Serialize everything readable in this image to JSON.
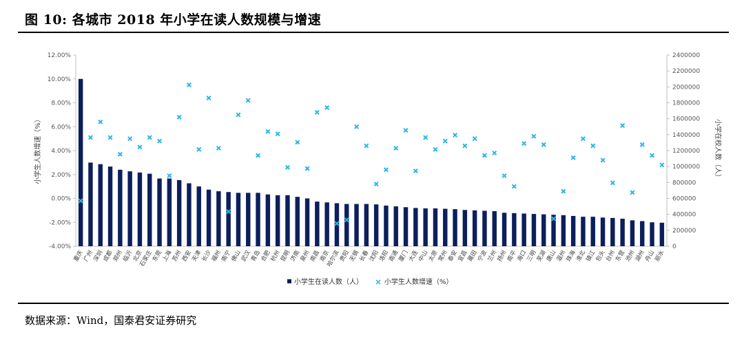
{
  "title": "图 10:  各城市 2018 年小学在读人数规模与增速",
  "source": "数据来源：Wind，国泰君安证券研究",
  "colors": {
    "bar": "#0c1f5c",
    "marker": "#29b5e8",
    "axis": "#bfbfbf"
  },
  "chart_data": {
    "type": "bar+scatter",
    "categories": [
      "重庆",
      "广州",
      "深圳",
      "成都",
      "郑州",
      "临沂",
      "北京",
      "石家庄",
      "东莞",
      "上海",
      "苏州",
      "西安",
      "天津",
      "长沙",
      "福州",
      "南宁",
      "佛山",
      "武汉",
      "青岛",
      "合肥",
      "杭州",
      "昆明",
      "济南",
      "泉州",
      "南昌",
      "南京",
      "哈尔滨",
      "贵阳",
      "无锡",
      "长春",
      "沈阳",
      "洛阳",
      "南通",
      "厦门",
      "大连",
      "中山",
      "太原",
      "常州",
      "泰安",
      "宜昌",
      "莆田",
      "宁波",
      "兰州",
      "扬州",
      "南平",
      "海口",
      "三明",
      "芜湖",
      "唐山",
      "温州",
      "珠海",
      "淮北",
      "镇江",
      "包头",
      "台州",
      "东营",
      "池州",
      "湖州",
      "舟山",
      "丽水"
    ],
    "left_axis": {
      "label": "小学生人数增速（%）",
      "ticks": [
        "-4.00%",
        "-2.00%",
        "0.00%",
        "2.00%",
        "4.00%",
        "6.00%",
        "8.00%",
        "10.00%",
        "12.00%"
      ],
      "ylim": [
        -4,
        12
      ]
    },
    "right_axis": {
      "label": "小学在校人数（人）",
      "ticks": [
        "0",
        "200000",
        "400000",
        "600000",
        "800000",
        "1000000",
        "1200000",
        "1400000",
        "1600000",
        "1800000",
        "2000000",
        "2200000",
        "2400000"
      ],
      "ylim": [
        0,
        2400000
      ]
    },
    "series": [
      {
        "name": "小学生在读人数（人）",
        "type": "bar",
        "axis": "right",
        "values": [
          2100000,
          1050000,
          1030000,
          1000000,
          960000,
          940000,
          925000,
          910000,
          850000,
          850000,
          830000,
          790000,
          750000,
          710000,
          690000,
          680000,
          670000,
          670000,
          670000,
          650000,
          640000,
          640000,
          620000,
          600000,
          560000,
          550000,
          540000,
          530000,
          530000,
          530000,
          525000,
          510000,
          500000,
          490000,
          480000,
          475000,
          475000,
          470000,
          465000,
          455000,
          450000,
          445000,
          440000,
          420000,
          415000,
          410000,
          405000,
          400000,
          395000,
          390000,
          380000,
          370000,
          370000,
          360000,
          355000,
          345000,
          325000,
          315000,
          300000,
          295000
        ]
      },
      {
        "name": "小学生人数增速（%）",
        "type": "scatter",
        "axis": "left",
        "values": [
          -0.2,
          5.1,
          6.4,
          5.1,
          3.7,
          5.0,
          4.3,
          5.1,
          4.8,
          1.9,
          6.8,
          9.5,
          4.1,
          8.4,
          4.2,
          -1.1,
          7.0,
          8.2,
          3.6,
          5.6,
          5.4,
          2.6,
          4.7,
          2.5,
          7.2,
          7.6,
          -2.1,
          -1.8,
          6.0,
          4.4,
          1.2,
          2.4,
          4.2,
          5.7,
          2.3,
          5.1,
          4.1,
          4.8,
          5.3,
          4.4,
          5.0,
          3.6,
          3.8,
          1.9,
          1.0,
          4.6,
          5.2,
          4.5,
          -1.7,
          0.6,
          3.4,
          5.0,
          4.4,
          3.2,
          1.3,
          6.1,
          0.5,
          4.5,
          3.6,
          2.8
        ]
      }
    ],
    "legend": [
      "小学生在读人数（人）",
      "小学生人数增速（%）"
    ],
    "legend_position": "bottom"
  }
}
